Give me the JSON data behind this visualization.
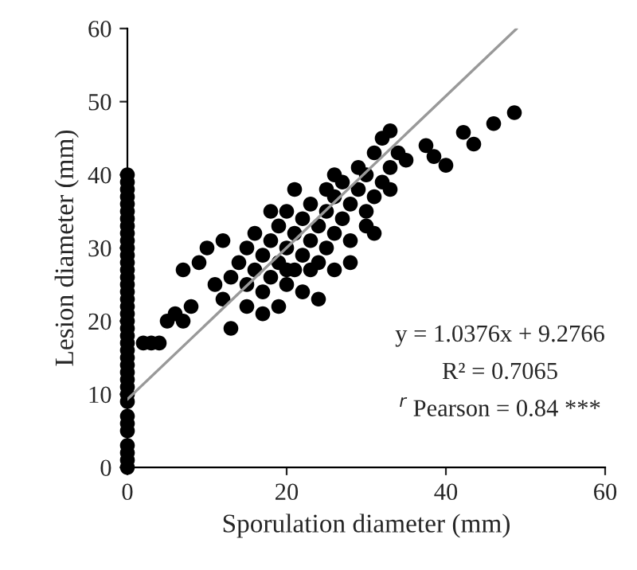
{
  "chart_data": {
    "type": "scatter",
    "xlabel": "Sporulation diameter (mm)",
    "ylabel": "Lesion diameter (mm)",
    "xlim": [
      0,
      60
    ],
    "ylim": [
      0,
      60
    ],
    "xticks": [
      0,
      20,
      40,
      60
    ],
    "yticks": [
      0,
      10,
      20,
      30,
      40,
      50,
      60
    ],
    "grid": false,
    "marker": "circle",
    "series": [
      {
        "color": "#000000",
        "x": [
          0,
          0,
          0,
          0,
          0,
          0,
          0,
          0,
          0,
          0,
          0,
          0,
          0,
          0,
          0,
          0,
          0,
          0,
          0,
          0,
          0,
          0,
          0,
          0,
          0,
          0,
          0,
          0,
          0,
          0,
          0,
          0,
          0,
          0,
          0,
          0,
          0,
          0,
          0,
          2,
          3,
          4,
          5,
          6,
          7,
          8,
          7,
          9,
          10,
          12,
          11,
          12,
          13,
          13,
          14,
          15,
          15,
          16,
          16,
          17,
          17,
          18,
          18,
          19,
          19,
          20,
          20,
          20,
          21,
          21,
          22,
          22,
          22,
          23,
          23,
          24,
          24,
          25,
          25,
          25,
          26,
          26,
          26,
          27,
          27,
          28,
          28,
          29,
          29,
          30,
          30,
          31,
          31,
          32,
          32,
          33,
          33,
          34,
          31,
          28,
          24,
          19,
          17,
          20,
          23,
          30,
          33,
          26,
          21,
          18,
          15,
          35,
          37.5,
          38.5,
          40,
          42.2,
          43.5,
          46,
          48.6
        ],
        "values": [
          0,
          1,
          2,
          3,
          5,
          6,
          7,
          9,
          10,
          11,
          12,
          13,
          14,
          15,
          16,
          17,
          18,
          19,
          20,
          21,
          22,
          23,
          24,
          25,
          26,
          27,
          28,
          29,
          30,
          31,
          32,
          33,
          34,
          35,
          36,
          37,
          38,
          39,
          40,
          17,
          17,
          17,
          20,
          21,
          20,
          22,
          27,
          28,
          30,
          31,
          25,
          23,
          19,
          26,
          28,
          30,
          25,
          27,
          32,
          29,
          24,
          31,
          26,
          33,
          28,
          30,
          25,
          35,
          32,
          27,
          34,
          29,
          24,
          31,
          36,
          33,
          28,
          35,
          30,
          38,
          32,
          37,
          27,
          34,
          39,
          36,
          31,
          38,
          41,
          35,
          40,
          37,
          43,
          39,
          45,
          41,
          46,
          43,
          32,
          28,
          23,
          22,
          21,
          27,
          27,
          33,
          38,
          40,
          38,
          35,
          22,
          42,
          44,
          42.5,
          41.3,
          45.8,
          44.2,
          47,
          48.5
        ]
      },
      {
        "type": "line",
        "color": "#999999",
        "marker": "none",
        "line_style": "solid",
        "x": [
          0,
          48.9
        ],
        "values": [
          9.3,
          60
        ]
      }
    ],
    "annotations": [
      "y = 1.0376x + 9.2766",
      "R² = 0.7065",
      "$^{r}$ Pearson = 0.84 ***"
    ]
  }
}
